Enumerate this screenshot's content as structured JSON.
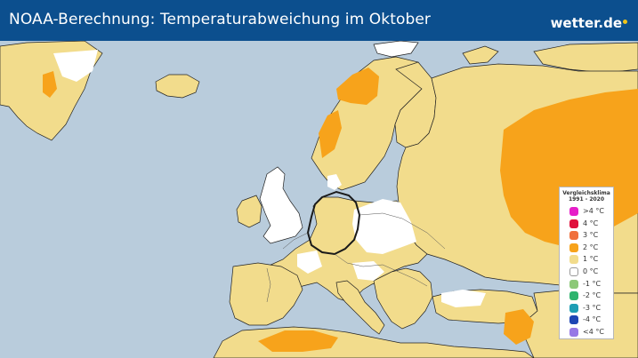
{
  "header": {
    "title": "NOAA-Berechnung: Temperaturabweichung im Oktober",
    "brand": "wetter.de"
  },
  "legend": {
    "title_line1": "Vergleichsklima",
    "title_line2": "1991 - 2020",
    "items": [
      {
        "label": ">4 °C",
        "color": "#e61ec8"
      },
      {
        "label": "4 °C",
        "color": "#e0103c"
      },
      {
        "label": "3 °C",
        "color": "#f0703c"
      },
      {
        "label": "2 °C",
        "color": "#f7a31b"
      },
      {
        "label": "1 °C",
        "color": "#f2dc8c"
      },
      {
        "label": "0 °C",
        "color": "#ffffff"
      },
      {
        "label": "-1 °C",
        "color": "#8cc878"
      },
      {
        "label": "-2 °C",
        "color": "#2eb46e"
      },
      {
        "label": "-3 °C",
        "color": "#1e9eb4"
      },
      {
        "label": "-4 °C",
        "color": "#1e46b4"
      },
      {
        "label": "<4 °C",
        "color": "#9678e6"
      }
    ]
  },
  "colors": {
    "header_bg": "#0c4f8e",
    "sea": "#b9ccdc",
    "anomaly_plus1": "#f2dc8c",
    "anomaly_plus2": "#f7a31b",
    "anomaly_zero": "#ffffff"
  }
}
